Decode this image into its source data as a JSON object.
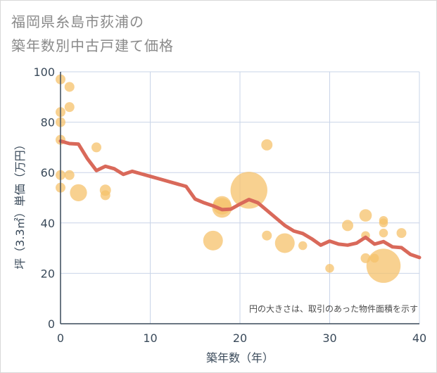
{
  "title_line1": "福岡県糸島市荻浦の",
  "title_line2": "築年数別中古戸建て価格",
  "chart_data": {
    "type": "scatter",
    "xlabel": "築年数（年）",
    "ylabel": "坪（3.3㎡）単価（万円）",
    "xlim": [
      0,
      40
    ],
    "ylim": [
      0,
      100
    ],
    "xticks": [
      0,
      10,
      20,
      30,
      40
    ],
    "yticks": [
      0,
      20,
      40,
      60,
      80,
      100
    ],
    "grid": true,
    "note": "円の大きさは、取引のあった物件面積を示す",
    "colors": {
      "bubble": "#f5c26b",
      "line": "#d9695a",
      "grid": "#c9d4e8"
    },
    "bubbles": [
      {
        "x": 0,
        "y": 97,
        "size": 1
      },
      {
        "x": 0,
        "y": 84,
        "size": 1
      },
      {
        "x": 0,
        "y": 80,
        "size": 1
      },
      {
        "x": 0,
        "y": 73,
        "size": 1
      },
      {
        "x": 0,
        "y": 59,
        "size": 1
      },
      {
        "x": 0,
        "y": 54,
        "size": 1
      },
      {
        "x": 1,
        "y": 94,
        "size": 1
      },
      {
        "x": 1,
        "y": 86,
        "size": 1
      },
      {
        "x": 1,
        "y": 59,
        "size": 1
      },
      {
        "x": 2,
        "y": 52,
        "size": 3
      },
      {
        "x": 4,
        "y": 70,
        "size": 1
      },
      {
        "x": 5,
        "y": 53,
        "size": 1.3
      },
      {
        "x": 5,
        "y": 51,
        "size": 1
      },
      {
        "x": 17,
        "y": 33,
        "size": 4
      },
      {
        "x": 18,
        "y": 47,
        "size": 3.5
      },
      {
        "x": 18,
        "y": 46,
        "size": 4
      },
      {
        "x": 21,
        "y": 53,
        "size": 14
      },
      {
        "x": 23,
        "y": 71,
        "size": 1.3
      },
      {
        "x": 23,
        "y": 35,
        "size": 1
      },
      {
        "x": 25,
        "y": 32,
        "size": 4
      },
      {
        "x": 27,
        "y": 31,
        "size": 0.8
      },
      {
        "x": 30,
        "y": 22,
        "size": 0.8
      },
      {
        "x": 32,
        "y": 39,
        "size": 1.3
      },
      {
        "x": 34,
        "y": 43,
        "size": 1.6
      },
      {
        "x": 34,
        "y": 35,
        "size": 0.8
      },
      {
        "x": 34,
        "y": 26,
        "size": 1
      },
      {
        "x": 35,
        "y": 26,
        "size": 0.8
      },
      {
        "x": 36,
        "y": 41,
        "size": 0.8
      },
      {
        "x": 36,
        "y": 40,
        "size": 0.8
      },
      {
        "x": 36,
        "y": 36,
        "size": 0.8
      },
      {
        "x": 36,
        "y": 23,
        "size": 12
      },
      {
        "x": 38,
        "y": 36,
        "size": 1
      }
    ],
    "trend": {
      "x": [
        0,
        1,
        2,
        3,
        4,
        5,
        6,
        7,
        8,
        9,
        10,
        11,
        12,
        13,
        14,
        15,
        16,
        17,
        18,
        19,
        20,
        21,
        22,
        23,
        24,
        25,
        26,
        27,
        28,
        29,
        30,
        31,
        32,
        33,
        34,
        35,
        36,
        37,
        38,
        39,
        40
      ],
      "y": [
        72.5,
        71.5,
        71.3,
        65.5,
        60.8,
        62.5,
        61.5,
        59.3,
        60.5,
        59.5,
        58.5,
        57.5,
        56.5,
        55.5,
        54.5,
        49.5,
        48.0,
        46.8,
        45.3,
        45.5,
        47.5,
        49.3,
        48.0,
        45.0,
        42.0,
        39.0,
        36.8,
        35.8,
        33.7,
        31.2,
        32.8,
        31.6,
        31.2,
        32.0,
        34.3,
        31.6,
        32.6,
        30.5,
        30.2,
        27.5,
        26.3
      ]
    }
  }
}
